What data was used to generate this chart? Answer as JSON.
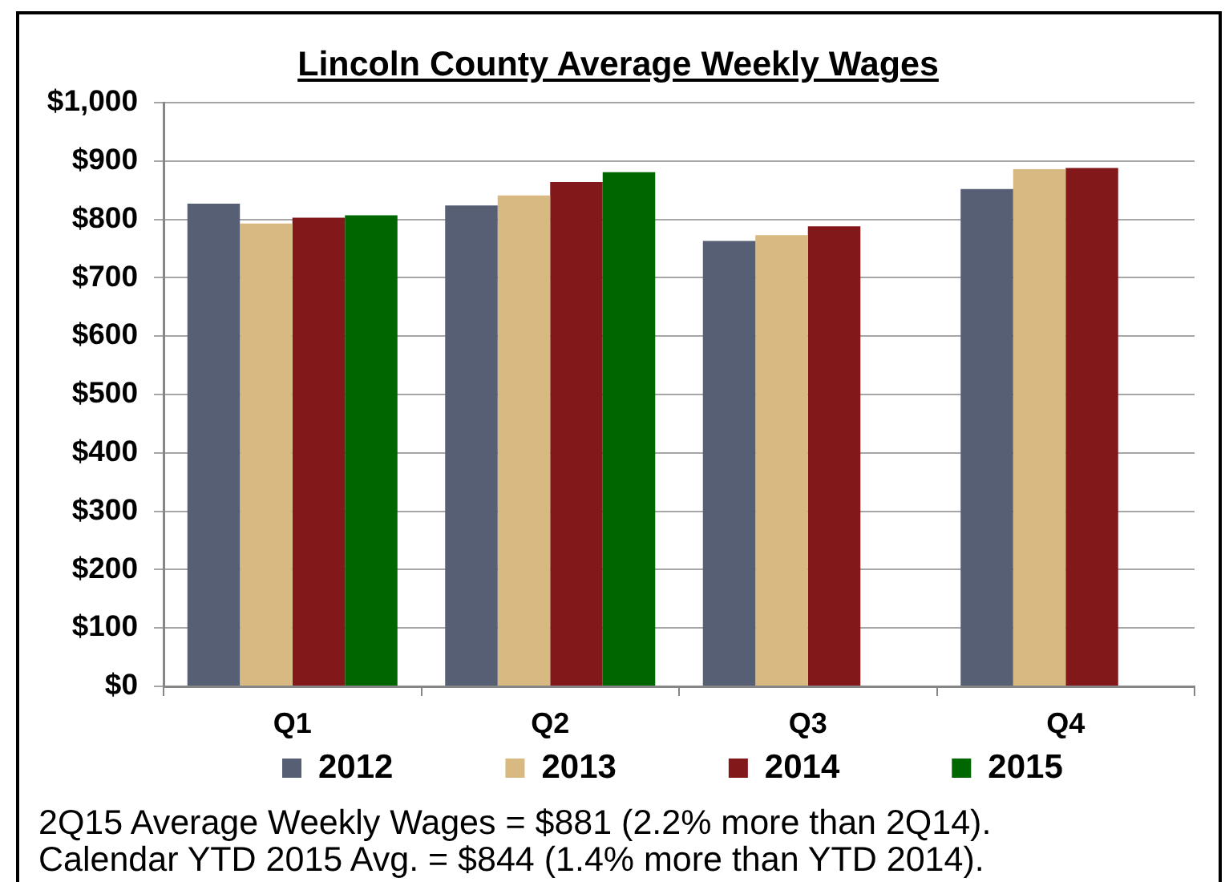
{
  "chart_data": {
    "type": "bar",
    "title": "Lincoln County Average Weekly Wages",
    "categories": [
      "Q1",
      "Q2",
      "Q3",
      "Q4"
    ],
    "series": [
      {
        "name": "2012",
        "color": "#575f75",
        "values": [
          827,
          824,
          763,
          852
        ]
      },
      {
        "name": "2013",
        "color": "#d9b982",
        "values": [
          793,
          841,
          773,
          886
        ]
      },
      {
        "name": "2014",
        "color": "#82181a",
        "values": [
          803,
          864,
          788,
          888
        ]
      },
      {
        "name": "2015",
        "color": "#006600",
        "values": [
          807,
          881,
          null,
          null
        ]
      }
    ],
    "ylim": [
      0,
      1000
    ],
    "yticks": [
      {
        "value": 0,
        "label": "$0"
      },
      {
        "value": 100,
        "label": "$100"
      },
      {
        "value": 200,
        "label": "$200"
      },
      {
        "value": 300,
        "label": "$300"
      },
      {
        "value": 400,
        "label": "$400"
      },
      {
        "value": 500,
        "label": "$500"
      },
      {
        "value": 600,
        "label": "$600"
      },
      {
        "value": 700,
        "label": "$700"
      },
      {
        "value": 800,
        "label": "$800"
      },
      {
        "value": 900,
        "label": "$900"
      },
      {
        "value": 1000,
        "label": "$1,000"
      }
    ],
    "grid": "y",
    "legend": "bottom",
    "annotations": [
      "2Q15 Average Weekly Wages = $881 (2.2% more than 2Q14).",
      "Calendar YTD 2015 Avg. = $844 (1.4% more than YTD 2014)."
    ]
  }
}
